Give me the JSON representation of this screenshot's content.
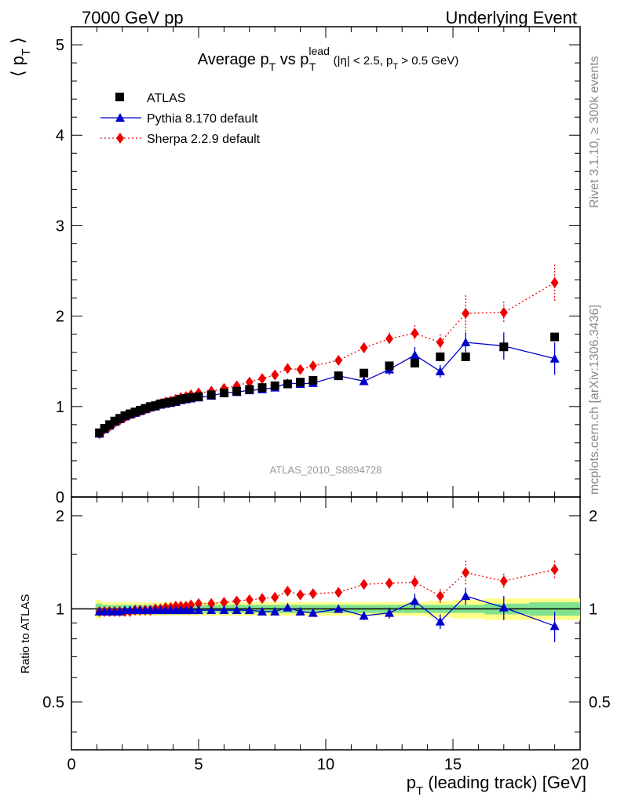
{
  "header": {
    "left": "7000 GeV pp",
    "right": "Underlying Event",
    "side_top": "Rivet 3.1.10, ≥ 300k events",
    "side_bottom": "mcplots.cern.ch [arXiv:1306.3436]",
    "watermark": "ATLAS_2010_S8894728"
  },
  "chart_data": {
    "type": "scatter",
    "title_main": "Average p",
    "title_sub1": "T",
    "title_vs": " vs p",
    "title_sup": "lead",
    "title_sub2": "T",
    "title_cond1": " (|η| < 2.5, p",
    "title_cond_sub": "T",
    "title_cond2": " > 0.5 GeV)",
    "ylabel_main": "⟨ p",
    "ylabel_sub": "T",
    "ylabel_end": " ⟩",
    "ratio_ylabel": "Ratio to ATLAS",
    "xlabel_main": "p",
    "xlabel_sub": "T",
    "xlabel_rest": " (leading track) [GeV]",
    "xlim": [
      0,
      20
    ],
    "ylim": [
      0,
      5.2
    ],
    "ratio_ylim": [
      0.35,
      2.3
    ],
    "x_ticks": [
      "0",
      "5",
      "10",
      "15",
      "20"
    ],
    "y_ticks": [
      "0",
      "1",
      "2",
      "3",
      "4",
      "5"
    ],
    "ratio_ticks": [
      "0.5",
      "1",
      "2"
    ],
    "x": [
      1.1,
      1.3,
      1.5,
      1.7,
      1.9,
      2.1,
      2.3,
      2.5,
      2.7,
      2.9,
      3.1,
      3.3,
      3.5,
      3.7,
      3.9,
      4.1,
      4.3,
      4.5,
      4.7,
      5.0,
      5.5,
      6.0,
      6.5,
      7.0,
      7.5,
      8.0,
      8.5,
      9.0,
      9.5,
      10.5,
      11.5,
      12.5,
      13.5,
      14.5,
      15.5,
      17.0,
      19.0
    ],
    "series": [
      {
        "name": "ATLAS",
        "color": "#000000",
        "marker": "square",
        "values": [
          0.71,
          0.76,
          0.8,
          0.84,
          0.87,
          0.9,
          0.92,
          0.94,
          0.96,
          0.98,
          1.0,
          1.01,
          1.03,
          1.04,
          1.05,
          1.06,
          1.08,
          1.09,
          1.1,
          1.11,
          1.13,
          1.15,
          1.17,
          1.19,
          1.21,
          1.23,
          1.25,
          1.27,
          1.29,
          1.34,
          1.37,
          1.45,
          1.48,
          1.55,
          1.55,
          1.66,
          1.77
        ]
      },
      {
        "name": "Pythia 8.170 default",
        "color": "#0000cc",
        "marker": "triangle",
        "line": "solid",
        "values": [
          0.7,
          0.75,
          0.79,
          0.83,
          0.86,
          0.89,
          0.91,
          0.93,
          0.95,
          0.97,
          0.99,
          1.0,
          1.02,
          1.03,
          1.04,
          1.05,
          1.07,
          1.08,
          1.09,
          1.1,
          1.12,
          1.15,
          1.16,
          1.18,
          1.19,
          1.21,
          1.26,
          1.25,
          1.26,
          1.34,
          1.28,
          1.41,
          1.57,
          1.39,
          1.71,
          1.67,
          1.53
        ],
        "errors": [
          0,
          0,
          0,
          0,
          0,
          0,
          0,
          0,
          0,
          0,
          0,
          0,
          0,
          0,
          0,
          0,
          0,
          0,
          0,
          0,
          0,
          0,
          0,
          0,
          0,
          0,
          0,
          0,
          0,
          0.03,
          0.04,
          0.06,
          0.09,
          0.07,
          0.11,
          0.15,
          0.18
        ]
      },
      {
        "name": "Sherpa 2.2.9 default",
        "color": "#ee0000",
        "marker": "diamond",
        "line": "dotted",
        "values": [
          0.7,
          0.75,
          0.78,
          0.82,
          0.85,
          0.88,
          0.91,
          0.93,
          0.95,
          0.97,
          0.99,
          1.01,
          1.03,
          1.05,
          1.06,
          1.08,
          1.1,
          1.11,
          1.13,
          1.15,
          1.17,
          1.2,
          1.23,
          1.27,
          1.31,
          1.35,
          1.42,
          1.41,
          1.45,
          1.51,
          1.65,
          1.75,
          1.81,
          1.71,
          2.03,
          2.04,
          2.37
        ],
        "errors": [
          0,
          0,
          0,
          0,
          0,
          0,
          0,
          0,
          0,
          0,
          0,
          0,
          0,
          0,
          0,
          0,
          0,
          0,
          0,
          0,
          0,
          0,
          0,
          0,
          0,
          0.03,
          0.03,
          0.04,
          0.04,
          0.05,
          0.06,
          0.07,
          0.09,
          0.09,
          0.2,
          0.12,
          0.2
        ]
      }
    ],
    "ratio_series": [
      {
        "name": "Pythia 8.170 default",
        "values": [
          0.98,
          0.98,
          0.98,
          0.98,
          0.98,
          0.99,
          0.99,
          0.99,
          0.99,
          0.99,
          0.99,
          0.99,
          0.99,
          0.99,
          0.99,
          0.99,
          0.99,
          0.99,
          0.99,
          0.99,
          0.99,
          0.99,
          0.99,
          0.99,
          0.98,
          0.98,
          1.01,
          0.98,
          0.97,
          1.0,
          0.95,
          0.97,
          1.06,
          0.91,
          1.1,
          1.01,
          0.88
        ],
        "errors": [
          0,
          0,
          0,
          0,
          0,
          0,
          0,
          0,
          0,
          0,
          0,
          0,
          0,
          0,
          0,
          0,
          0,
          0,
          0,
          0,
          0,
          0,
          0,
          0,
          0,
          0,
          0,
          0,
          0,
          0.02,
          0.03,
          0.04,
          0.06,
          0.05,
          0.07,
          0.09,
          0.1
        ]
      },
      {
        "name": "Sherpa 2.2.9 default",
        "values": [
          0.98,
          0.98,
          0.98,
          0.98,
          0.98,
          0.98,
          0.98,
          0.99,
          0.99,
          0.99,
          0.99,
          1.0,
          1.0,
          1.01,
          1.01,
          1.02,
          1.02,
          1.02,
          1.03,
          1.04,
          1.04,
          1.05,
          1.06,
          1.07,
          1.08,
          1.09,
          1.14,
          1.11,
          1.12,
          1.13,
          1.2,
          1.21,
          1.22,
          1.1,
          1.31,
          1.23,
          1.34
        ],
        "errors": [
          0,
          0,
          0,
          0,
          0,
          0,
          0,
          0,
          0,
          0,
          0,
          0,
          0,
          0,
          0,
          0,
          0,
          0,
          0,
          0,
          0,
          0,
          0,
          0,
          0,
          0.02,
          0.02,
          0.03,
          0.03,
          0.03,
          0.04,
          0.05,
          0.06,
          0.06,
          0.12,
          0.07,
          0.09
        ]
      }
    ],
    "ratio_band": {
      "inner_color": "#7fe28f",
      "outer_color": "#ffff88",
      "inner": [
        0.04,
        0.03,
        0.03,
        0.03,
        0.03,
        0.03,
        0.03,
        0.03,
        0.03,
        0.03,
        0.03,
        0.03,
        0.03,
        0.03,
        0.03,
        0.03,
        0.03,
        0.03,
        0.03,
        0.03,
        0.03,
        0.03,
        0.03,
        0.03,
        0.03,
        0.03,
        0.03,
        0.03,
        0.03,
        0.03,
        0.03,
        0.03,
        0.03,
        0.03,
        0.03,
        0.04,
        0.05
      ],
      "outer": [
        0.07,
        0.05,
        0.05,
        0.05,
        0.05,
        0.05,
        0.05,
        0.05,
        0.05,
        0.05,
        0.05,
        0.05,
        0.05,
        0.05,
        0.05,
        0.05,
        0.05,
        0.05,
        0.05,
        0.05,
        0.05,
        0.05,
        0.05,
        0.05,
        0.05,
        0.05,
        0.05,
        0.05,
        0.05,
        0.05,
        0.05,
        0.05,
        0.05,
        0.06,
        0.07,
        0.08,
        0.08
      ]
    }
  }
}
